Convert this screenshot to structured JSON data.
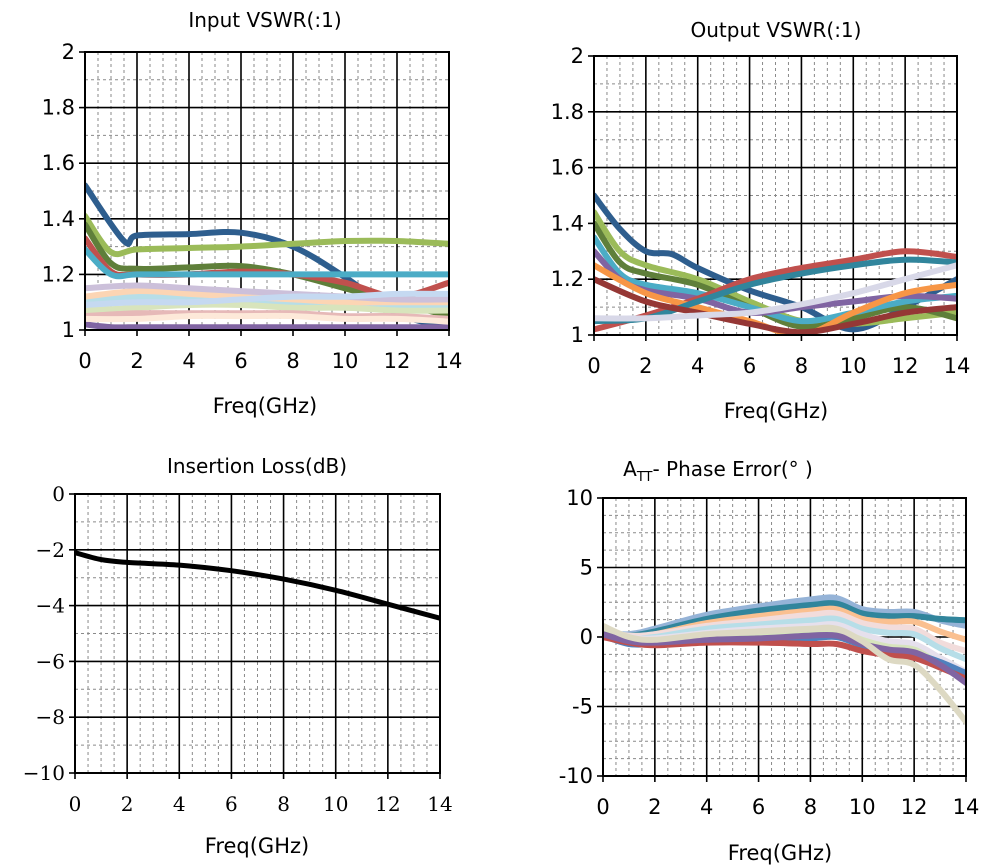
{
  "chart_data": [
    {
      "type": "line",
      "title": "Input VSWR(:1)",
      "xlabel": "Freq(GHz)",
      "ylabel": "",
      "xlim": [
        0,
        14
      ],
      "ylim": [
        1,
        2
      ],
      "xticks": [
        0,
        2,
        4,
        6,
        8,
        10,
        12,
        14
      ],
      "yticks": [
        1,
        1.2,
        1.4,
        1.6,
        1.8,
        2
      ],
      "ytick_labels": [
        "1",
        "1.2",
        "1.4",
        "1.6",
        "1.8",
        "2"
      ],
      "grid": "on",
      "series": [
        {
          "color": "#2e5e8e",
          "x": [
            0,
            1.5,
            2,
            4,
            6,
            8,
            10,
            12,
            14
          ],
          "y": [
            1.52,
            1.32,
            1.34,
            1.345,
            1.35,
            1.3,
            1.19,
            1.06,
            1.01
          ]
        },
        {
          "color": "#9bbb59",
          "x": [
            0,
            1,
            2,
            4,
            6,
            8,
            10,
            12,
            14
          ],
          "y": [
            1.41,
            1.28,
            1.29,
            1.295,
            1.3,
            1.31,
            1.32,
            1.32,
            1.31
          ]
        },
        {
          "color": "#5f7f3a",
          "x": [
            0,
            1,
            2,
            4,
            6,
            8,
            10,
            12,
            14
          ],
          "y": [
            1.38,
            1.24,
            1.22,
            1.225,
            1.23,
            1.2,
            1.15,
            1.1,
            1.05
          ]
        },
        {
          "color": "#c0504d",
          "x": [
            0,
            1,
            2,
            4,
            6,
            8,
            10,
            12,
            14
          ],
          "y": [
            1.33,
            1.21,
            1.2,
            1.2,
            1.21,
            1.2,
            1.17,
            1.12,
            1.17
          ]
        },
        {
          "color": "#4bacc6",
          "x": [
            0,
            1,
            2,
            4,
            6,
            8,
            10,
            12,
            14
          ],
          "y": [
            1.29,
            1.2,
            1.2,
            1.2,
            1.2,
            1.2,
            1.2,
            1.2,
            1.2
          ]
        },
        {
          "color": "#8064a2",
          "x": [
            0,
            1,
            2,
            4,
            6,
            8,
            10,
            12,
            14
          ],
          "y": [
            1.02,
            1.01,
            1.01,
            1.01,
            1.01,
            1.01,
            1.01,
            1.01,
            1.01
          ]
        },
        {
          "color": "#b7dee8",
          "x": [
            0,
            2,
            4,
            6,
            8,
            10,
            12,
            14
          ],
          "y": [
            1.1,
            1.12,
            1.11,
            1.1,
            1.1,
            1.1,
            1.09,
            1.08
          ]
        },
        {
          "color": "#fcd5b4",
          "x": [
            0,
            2,
            4,
            6,
            8,
            10,
            12,
            14
          ],
          "y": [
            1.12,
            1.14,
            1.13,
            1.12,
            1.11,
            1.1,
            1.1,
            1.1
          ]
        },
        {
          "color": "#d8e4bc",
          "x": [
            0,
            2,
            4,
            6,
            8,
            10,
            12,
            14
          ],
          "y": [
            1.07,
            1.08,
            1.09,
            1.09,
            1.08,
            1.08,
            1.07,
            1.07
          ]
        },
        {
          "color": "#e6b9b8",
          "x": [
            0,
            2,
            4,
            6,
            8,
            10,
            12,
            14
          ],
          "y": [
            1.05,
            1.06,
            1.06,
            1.06,
            1.06,
            1.05,
            1.05,
            1.04
          ]
        },
        {
          "color": "#ccc0da",
          "x": [
            0,
            2,
            4,
            6,
            8,
            10,
            12,
            14
          ],
          "y": [
            1.15,
            1.16,
            1.15,
            1.14,
            1.13,
            1.12,
            1.11,
            1.11
          ]
        },
        {
          "color": "#c5d9f1",
          "x": [
            0,
            2,
            4,
            6,
            8,
            10,
            12,
            14
          ],
          "y": [
            1.09,
            1.1,
            1.1,
            1.11,
            1.12,
            1.12,
            1.13,
            1.13
          ]
        },
        {
          "color": "#fde9d9",
          "x": [
            0,
            2,
            4,
            6,
            8,
            10,
            12,
            14
          ],
          "y": [
            1.04,
            1.04,
            1.05,
            1.05,
            1.05,
            1.04,
            1.04,
            1.03
          ]
        }
      ]
    },
    {
      "type": "line",
      "title": "Output VSWR(:1)",
      "xlabel": "Freq(GHz)",
      "ylabel": "",
      "xlim": [
        0,
        14
      ],
      "ylim": [
        1,
        2
      ],
      "xticks": [
        0,
        2,
        4,
        6,
        8,
        10,
        12,
        14
      ],
      "yticks": [
        1,
        1.2,
        1.4,
        1.6,
        1.8,
        2
      ],
      "ytick_labels": [
        "1",
        "1.2",
        "1.4",
        "1.6",
        "1.8",
        "2"
      ],
      "grid": "on",
      "series": [
        {
          "color": "#2e5e8e",
          "x": [
            0,
            1,
            2,
            3,
            4,
            6,
            8,
            10,
            12,
            14
          ],
          "y": [
            1.5,
            1.38,
            1.3,
            1.29,
            1.24,
            1.16,
            1.1,
            1.02,
            1.1,
            1.2
          ]
        },
        {
          "color": "#9bbb59",
          "x": [
            0,
            1,
            2,
            4,
            6,
            8,
            10,
            12,
            14
          ],
          "y": [
            1.44,
            1.3,
            1.25,
            1.2,
            1.12,
            1.05,
            1.04,
            1.06,
            1.08
          ]
        },
        {
          "color": "#5f7f3a",
          "x": [
            0,
            1,
            2,
            4,
            6,
            8,
            10,
            12,
            14
          ],
          "y": [
            1.4,
            1.26,
            1.22,
            1.18,
            1.1,
            1.03,
            1.06,
            1.1,
            1.06
          ]
        },
        {
          "color": "#4bacc6",
          "x": [
            0,
            1,
            2,
            4,
            6,
            8,
            10,
            12,
            14
          ],
          "y": [
            1.35,
            1.22,
            1.18,
            1.15,
            1.1,
            1.05,
            1.08,
            1.12,
            1.14
          ]
        },
        {
          "color": "#8064a2",
          "x": [
            0,
            1,
            2,
            4,
            6,
            8,
            10,
            12,
            14
          ],
          "y": [
            1.3,
            1.2,
            1.16,
            1.13,
            1.08,
            1.1,
            1.12,
            1.14,
            1.13
          ]
        },
        {
          "color": "#c0504d",
          "x": [
            0,
            2,
            4,
            6,
            8,
            10,
            12,
            14
          ],
          "y": [
            1.02,
            1.07,
            1.13,
            1.2,
            1.24,
            1.27,
            1.3,
            1.28
          ]
        },
        {
          "color": "#f79646",
          "x": [
            0,
            2,
            4,
            6,
            8,
            10,
            12,
            14
          ],
          "y": [
            1.25,
            1.15,
            1.1,
            1.05,
            1.0,
            1.08,
            1.15,
            1.18
          ]
        },
        {
          "color": "#31859c",
          "x": [
            0,
            2,
            4,
            6,
            8,
            10,
            12,
            14
          ],
          "y": [
            1.05,
            1.06,
            1.12,
            1.18,
            1.22,
            1.25,
            1.27,
            1.26
          ]
        },
        {
          "color": "#953735",
          "x": [
            0,
            2,
            4,
            6,
            8,
            10,
            12,
            14
          ],
          "y": [
            1.2,
            1.12,
            1.08,
            1.04,
            1.01,
            1.04,
            1.08,
            1.1
          ]
        },
        {
          "color": "#d8d8e8",
          "x": [
            0,
            2,
            4,
            6,
            8,
            10,
            12,
            14
          ],
          "y": [
            1.06,
            1.06,
            1.07,
            1.08,
            1.11,
            1.15,
            1.2,
            1.25
          ]
        }
      ]
    },
    {
      "type": "line",
      "title": "Insertion Loss(dB)",
      "xlabel": "Freq(GHz)",
      "ylabel": "",
      "xlim": [
        0,
        14
      ],
      "ylim": [
        -10,
        0
      ],
      "xticks": [
        0,
        2,
        4,
        6,
        8,
        10,
        12,
        14
      ],
      "yticks": [
        -10,
        -8,
        -6,
        -4,
        -2,
        0
      ],
      "ytick_labels": [
        "−10",
        "−8",
        "−6",
        "−4",
        "−2",
        "0"
      ],
      "grid": "on",
      "series": [
        {
          "color": "#000000",
          "x": [
            0,
            1,
            2,
            4,
            6,
            8,
            10,
            12,
            14
          ],
          "y": [
            -2.1,
            -2.35,
            -2.45,
            -2.55,
            -2.75,
            -3.05,
            -3.45,
            -3.95,
            -4.45
          ]
        }
      ]
    },
    {
      "type": "line",
      "title": "A",
      "title_sub": "TT",
      "title_rest": "- Phase Error(° )",
      "xlabel": "Freq(GHz)",
      "ylabel": "",
      "xlim": [
        0,
        14
      ],
      "ylim": [
        -10,
        10
      ],
      "xticks": [
        0,
        2,
        4,
        6,
        8,
        10,
        12,
        14
      ],
      "yticks": [
        -10,
        -5,
        0,
        5,
        10
      ],
      "ytick_labels": [
        "-10",
        "-5",
        "0",
        "5",
        "10"
      ],
      "grid": "on",
      "series": [
        {
          "color": "#95b3d7",
          "x": [
            0,
            1,
            2,
            4,
            6,
            8,
            9,
            10,
            11,
            12,
            13,
            14
          ],
          "y": [
            0.3,
            0.2,
            0.6,
            1.6,
            2.2,
            2.7,
            2.8,
            2.0,
            1.8,
            1.8,
            1.2,
            0.8
          ]
        },
        {
          "color": "#31859c",
          "x": [
            0,
            1,
            2,
            4,
            6,
            8,
            9,
            10,
            11,
            12,
            13,
            14
          ],
          "y": [
            0.2,
            0.1,
            0.4,
            1.3,
            1.9,
            2.3,
            2.4,
            1.7,
            1.5,
            1.5,
            1.3,
            1.2
          ]
        },
        {
          "color": "#fac090",
          "x": [
            0,
            1,
            2,
            4,
            6,
            8,
            9,
            10,
            11,
            12,
            13,
            14
          ],
          "y": [
            0.1,
            0.0,
            0.2,
            1.0,
            1.5,
            1.9,
            2.0,
            1.3,
            1.1,
            1.1,
            0.4,
            -0.2
          ]
        },
        {
          "color": "#f2dcdb",
          "x": [
            0,
            1,
            2,
            4,
            6,
            8,
            9,
            10,
            11,
            12,
            13,
            14
          ],
          "y": [
            0.4,
            0.1,
            0.2,
            0.8,
            1.2,
            1.6,
            1.7,
            1.0,
            0.7,
            0.6,
            -0.4,
            -1.0
          ]
        },
        {
          "color": "#b7dee8",
          "x": [
            0,
            1,
            2,
            4,
            6,
            8,
            9,
            10,
            11,
            12,
            13,
            14
          ],
          "y": [
            0.2,
            -0.1,
            0.0,
            0.6,
            0.9,
            1.2,
            1.3,
            0.6,
            0.3,
            0.2,
            -0.8,
            -1.6
          ]
        },
        {
          "color": "#e6e0ec",
          "x": [
            0,
            1,
            2,
            4,
            6,
            8,
            9,
            10,
            11,
            12,
            13,
            14
          ],
          "y": [
            0.5,
            0.0,
            -0.1,
            0.3,
            0.6,
            0.8,
            0.9,
            0.2,
            -0.3,
            -0.5,
            -1.5,
            -2.5
          ]
        },
        {
          "color": "#d7e4bd",
          "x": [
            0,
            1,
            2,
            4,
            6,
            8,
            9,
            10,
            11,
            12,
            13,
            14
          ],
          "y": [
            0.3,
            -0.2,
            -0.3,
            0.1,
            0.3,
            0.5,
            0.5,
            -0.2,
            -0.7,
            -0.9,
            -2.0,
            -3.2
          ]
        },
        {
          "color": "#4f81bd",
          "x": [
            0,
            1,
            2,
            4,
            6,
            8,
            9,
            10,
            11,
            12,
            13,
            14
          ],
          "y": [
            0.1,
            -0.5,
            -0.5,
            -0.3,
            -0.2,
            -0.1,
            0.0,
            -0.6,
            -1.0,
            -1.2,
            -1.8,
            -2.6
          ]
        },
        {
          "color": "#c0504d",
          "x": [
            0,
            1,
            2,
            4,
            6,
            8,
            9,
            10,
            11,
            12,
            13,
            14
          ],
          "y": [
            0.0,
            -0.4,
            -0.6,
            -0.4,
            -0.4,
            -0.5,
            -0.5,
            -1.0,
            -1.3,
            -1.5,
            -2.2,
            -3.0
          ]
        },
        {
          "color": "#8064a2",
          "x": [
            0,
            1,
            2,
            4,
            6,
            8,
            9,
            10,
            11,
            12,
            13,
            14
          ],
          "y": [
            0.2,
            -0.3,
            -0.4,
            -0.2,
            -0.1,
            0.1,
            0.1,
            -0.5,
            -0.9,
            -1.1,
            -2.0,
            -3.3
          ]
        },
        {
          "color": "#ddd9c3",
          "x": [
            0,
            1,
            2,
            4,
            6,
            8,
            9,
            10,
            11,
            12,
            13,
            14
          ],
          "y": [
            0.8,
            0.0,
            -0.2,
            0.2,
            0.4,
            0.6,
            0.6,
            -0.3,
            -1.6,
            -2.0,
            -3.8,
            -6.1
          ]
        }
      ]
    }
  ]
}
